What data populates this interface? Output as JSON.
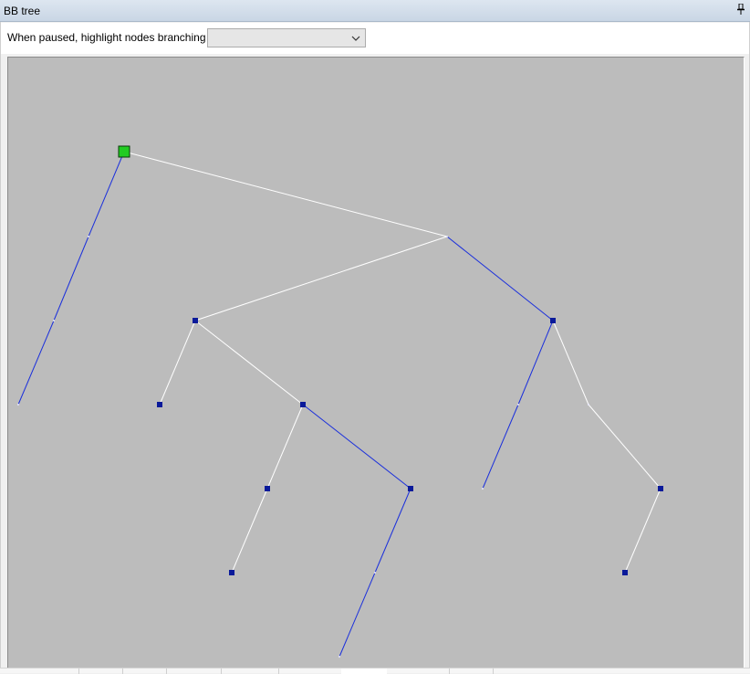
{
  "panel": {
    "title": "BB tree",
    "pin_icon": "📌"
  },
  "toolbar": {
    "label": "When paused, highlight nodes branching on",
    "select": {
      "value": ""
    }
  },
  "colors": {
    "canvas_bg": "#bcbcbc",
    "edge_white": "#ffffff",
    "edge_blue": "#1a2fdc",
    "node_blue": "#0a1a9a",
    "node_current": "#22cc22"
  },
  "tree": {
    "nodes": [
      {
        "id": "root",
        "kind": "branch"
      },
      {
        "id": "n_current",
        "kind": "current"
      },
      {
        "id": "n_left_a",
        "kind": "leaf-tick"
      },
      {
        "id": "n_left_b",
        "kind": "leaf-tick"
      },
      {
        "id": "n_leaf_left",
        "kind": "leaf-tick"
      },
      {
        "id": "n_a",
        "kind": "node"
      },
      {
        "id": "n_a_left",
        "kind": "node"
      },
      {
        "id": "n_b",
        "kind": "node"
      },
      {
        "id": "n_b_left",
        "kind": "node"
      },
      {
        "id": "n_b_left_leaf",
        "kind": "node"
      },
      {
        "id": "n_c",
        "kind": "node"
      },
      {
        "id": "n_c_mid",
        "kind": "leaf-tick"
      },
      {
        "id": "n_c_leaf",
        "kind": "leaf-tick"
      },
      {
        "id": "n_d",
        "kind": "node"
      },
      {
        "id": "n_d_mid",
        "kind": "leaf-tick"
      },
      {
        "id": "n_d_leaf",
        "kind": "leaf-tick"
      },
      {
        "id": "n_e",
        "kind": "branch"
      },
      {
        "id": "n_f",
        "kind": "node"
      },
      {
        "id": "n_f_leaf",
        "kind": "node"
      }
    ],
    "edges": [
      {
        "from": "n_current",
        "to": "root",
        "color": "white"
      },
      {
        "from": "n_current",
        "to": "n_leaf_left",
        "color": "blue"
      },
      {
        "from": "root",
        "to": "n_a",
        "color": "white"
      },
      {
        "from": "root",
        "to": "n_d",
        "color": "blue"
      },
      {
        "from": "n_a",
        "to": "n_a_left",
        "color": "white"
      },
      {
        "from": "n_a",
        "to": "n_b",
        "color": "white"
      },
      {
        "from": "n_b",
        "to": "n_b_left",
        "color": "white"
      },
      {
        "from": "n_b",
        "to": "n_c",
        "color": "blue"
      },
      {
        "from": "n_b_left",
        "to": "n_b_left_leaf",
        "color": "white"
      },
      {
        "from": "n_c",
        "to": "n_c_leaf",
        "color": "blue"
      },
      {
        "from": "n_d",
        "to": "n_d_leaf",
        "color": "blue"
      },
      {
        "from": "n_d",
        "to": "n_e",
        "color": "white"
      },
      {
        "from": "n_e",
        "to": "n_f",
        "color": "white"
      },
      {
        "from": "n_f",
        "to": "n_f_leaf",
        "color": "white"
      }
    ]
  }
}
